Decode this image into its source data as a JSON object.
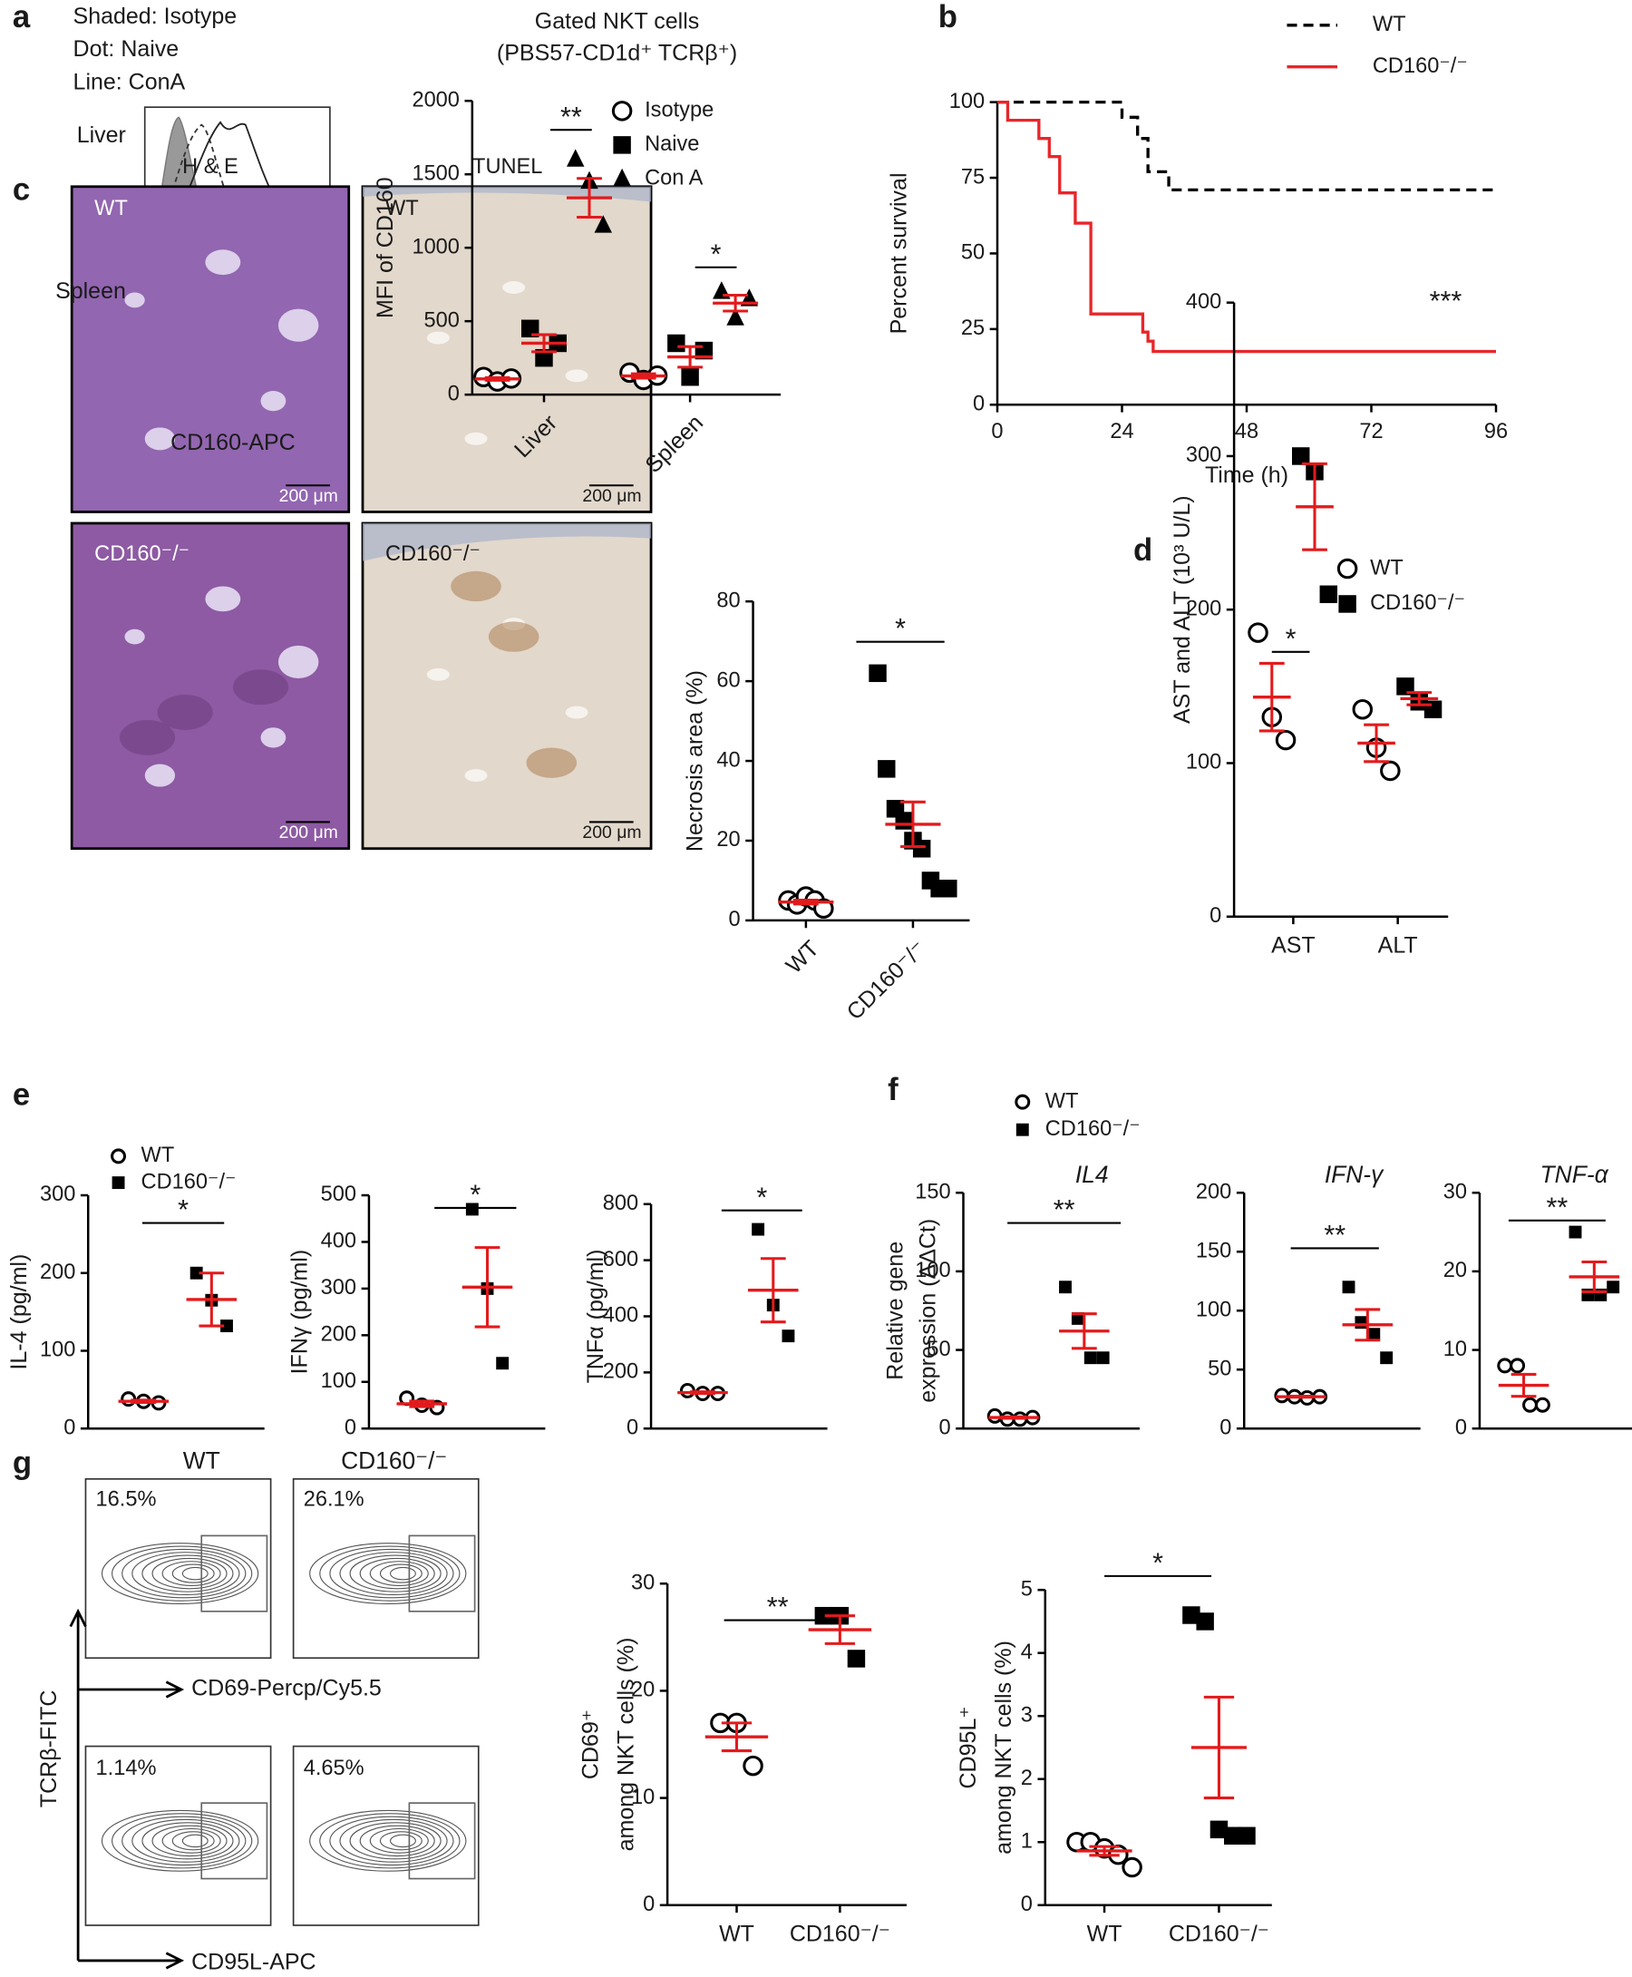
{
  "figure": {
    "panels": [
      "a",
      "b",
      "c",
      "d",
      "e",
      "f",
      "g"
    ],
    "a_legend": [
      "Shaded: Isotype",
      "Dot: Naive",
      "Line: ConA"
    ],
    "a_tissues": [
      "Liver",
      "Spleen"
    ],
    "a_xlabel": "CD160-APC",
    "c_headers": [
      "H & E",
      "TUNEL"
    ],
    "c_genotypes": [
      "WT",
      "CD160⁻/⁻"
    ],
    "scale_bar": "200 μm",
    "g_titles": [
      "WT",
      "CD160⁻/⁻"
    ],
    "g_percents": [
      "16.5%",
      "26.1%",
      "1.14%",
      "4.65%"
    ],
    "g_ylabel": "TCRβ-FITC",
    "g_xlabels": [
      "CD69-Percp/Cy5.5",
      "CD95L-APC"
    ]
  },
  "chart_data": [
    {
      "type": "dot",
      "title": [
        "Gated NKT cells",
        "(PBS57-CD1d⁺ TCRβ⁺)"
      ],
      "ylabel": [
        "MFI of CD160"
      ],
      "categories": [
        "Liver",
        "Spleen"
      ],
      "ylim": [
        0,
        2000
      ],
      "yticks": [
        0,
        500,
        1000,
        1500,
        2000
      ],
      "mean_color": "#e31a1c",
      "series": [
        {
          "name": "Isotype",
          "marker": "circle",
          "values": [
            [
              120,
              90,
              110
            ],
            [
              150,
              100,
              130
            ]
          ],
          "means": [
            107,
            127
          ],
          "errors": [
            9,
            15
          ]
        },
        {
          "name": "Naive",
          "marker": "square",
          "values": [
            [
              450,
              250,
              350
            ],
            [
              350,
              120,
              300
            ]
          ],
          "means": [
            350,
            257
          ],
          "errors": [
            58,
            70
          ]
        },
        {
          "name": "Con A",
          "marker": "triangle",
          "values": [
            [
              1600,
              1450,
              1150
            ],
            [
              700,
              520,
              650
            ]
          ],
          "means": [
            1340,
            623
          ],
          "errors": [
            132,
            54
          ]
        }
      ],
      "annotations": [
        "**",
        "*"
      ]
    },
    {
      "type": "line",
      "ylabel": "Percent survival",
      "xlabel": "Time (h)",
      "xlim": [
        0,
        96
      ],
      "xticks": [
        0,
        24,
        48,
        72,
        96
      ],
      "ylim": [
        0,
        100
      ],
      "yticks": [
        0,
        25,
        50,
        75,
        100
      ],
      "series": [
        {
          "name": "WT",
          "color": "#000000",
          "dashed": true,
          "x": [
            0,
            24,
            24,
            27,
            27,
            29,
            29,
            33,
            33,
            96
          ],
          "values": [
            100,
            100,
            95,
            95,
            88,
            88,
            77,
            77,
            71,
            71
          ]
        },
        {
          "name": "CD160⁻/⁻",
          "color": "#e8262a",
          "dashed": false,
          "x": [
            0,
            2,
            2,
            8,
            8,
            10,
            10,
            12,
            12,
            15,
            15,
            18,
            18,
            28,
            28,
            29,
            29,
            30,
            30,
            96
          ],
          "values": [
            100,
            100,
            94,
            94,
            88,
            88,
            82,
            82,
            70,
            70,
            60,
            60,
            30,
            30,
            24,
            24,
            21,
            21,
            17.6,
            17.6
          ]
        }
      ],
      "annotations": [
        "***"
      ]
    },
    {
      "type": "dot",
      "ylabel": [
        "Necrosis area (%)"
      ],
      "categories": [
        "WT",
        "CD160⁻/⁻"
      ],
      "ylim": [
        0,
        80
      ],
      "yticks": [
        0,
        20,
        40,
        60,
        80
      ],
      "mean_color": "#e31a1c",
      "series": [
        {
          "marker": "circle",
          "values": [
            [
              5,
              4,
              6,
              5,
              3
            ],
            null
          ],
          "means": [
            4.6,
            null
          ],
          "errors": [
            0.5,
            null
          ]
        },
        {
          "marker": "square",
          "values": [
            null,
            [
              62,
              38,
              28,
              25,
              20,
              18,
              10,
              8,
              8
            ]
          ],
          "means": [
            null,
            24.1
          ],
          "errors": [
            null,
            5.6
          ]
        }
      ],
      "annotations": [
        "*"
      ]
    },
    {
      "type": "dot",
      "ylabel": [
        "AST and ALT (10³ U/L)"
      ],
      "categories": [
        "AST",
        "ALT"
      ],
      "ylim": [
        0,
        400
      ],
      "yticks": [
        0,
        100,
        200,
        300,
        400
      ],
      "mean_color": "#e31a1c",
      "series": [
        {
          "name": "WT",
          "marker": "circle",
          "values": [
            [
              185,
              130,
              115
            ],
            [
              135,
              110,
              95
            ]
          ],
          "means": [
            143,
            113
          ],
          "errors": [
            22,
            12
          ]
        },
        {
          "name": "CD160⁻/⁻",
          "marker": "square",
          "values": [
            [
              300,
              290,
              210
            ],
            [
              150,
              140,
              135
            ]
          ],
          "means": [
            267,
            142
          ],
          "errors": [
            28,
            4
          ]
        }
      ],
      "annotations": [
        "*"
      ]
    },
    {
      "type": "dot",
      "ylabel": [
        "IL-4 (pg/ml)"
      ],
      "ylim": [
        0,
        300
      ],
      "yticks": [
        0,
        100,
        200,
        300
      ],
      "mean_color": "#e31a1c",
      "series": [
        {
          "name": "WT",
          "marker": "circle",
          "values": [
            [
              38,
              35,
              33
            ]
          ],
          "means": [
            35
          ],
          "errors": [
            1.5
          ]
        },
        {
          "name": "CD160⁻/⁻",
          "marker": "square",
          "values": [
            [
              200,
              165,
              132
            ]
          ],
          "means": [
            166
          ],
          "errors": [
            34
          ]
        }
      ],
      "annotations": [
        "*"
      ]
    },
    {
      "type": "dot",
      "ylabel": [
        "IFNγ (pg/ml)"
      ],
      "ylim": [
        0,
        500
      ],
      "yticks": [
        0,
        100,
        200,
        300,
        400,
        500
      ],
      "mean_color": "#e31a1c",
      "series": [
        {
          "marker": "circle",
          "values": [
            [
              65,
              50,
              45
            ]
          ],
          "means": [
            53
          ],
          "errors": [
            6
          ]
        },
        {
          "marker": "square",
          "values": [
            [
              470,
              300,
              140
            ]
          ],
          "means": [
            303
          ],
          "errors": [
            85
          ]
        }
      ],
      "annotations": [
        "*"
      ]
    },
    {
      "type": "dot",
      "ylabel": [
        "TNFα (pg/ml)"
      ],
      "ylim": [
        0,
        800
      ],
      "yticks": [
        0,
        200,
        400,
        600,
        800
      ],
      "mean_color": "#e31a1c",
      "series": [
        {
          "marker": "circle",
          "values": [
            [
              135,
              125,
              125
            ]
          ],
          "means": [
            128
          ],
          "errors": [
            3
          ]
        },
        {
          "marker": "square",
          "values": [
            [
              710,
              440,
              330
            ]
          ],
          "means": [
            493
          ],
          "errors": [
            113
          ]
        }
      ],
      "annotations": [
        "*"
      ]
    },
    {
      "type": "dot",
      "title": [
        "IL4"
      ],
      "ylabel": [
        "Relative gene",
        "expression (ΔΔCt)"
      ],
      "ylim": [
        0,
        150
      ],
      "yticks": [
        0,
        50,
        100,
        150
      ],
      "mean_color": "#e31a1c",
      "series": [
        {
          "name": "WT",
          "marker": "circle",
          "values": [
            [
              8,
              6,
              6,
              7
            ]
          ],
          "means": [
            7
          ],
          "errors": [
            0.5
          ]
        },
        {
          "name": "CD160⁻/⁻",
          "marker": "square",
          "values": [
            [
              90,
              70,
              45,
              45
            ]
          ],
          "means": [
            62
          ],
          "errors": [
            11
          ]
        }
      ],
      "annotations": [
        "**"
      ]
    },
    {
      "type": "dot",
      "title": [
        "IFN-γ"
      ],
      "ylim": [
        0,
        200
      ],
      "yticks": [
        0,
        50,
        100,
        150,
        200
      ],
      "mean_color": "#e31a1c",
      "series": [
        {
          "marker": "circle",
          "values": [
            [
              28,
              27,
              26,
              27
            ]
          ],
          "means": [
            27
          ],
          "errors": [
            0.5
          ]
        },
        {
          "marker": "square",
          "values": [
            [
              120,
              90,
              80,
              60
            ]
          ],
          "means": [
            88
          ],
          "errors": [
            13
          ]
        }
      ],
      "annotations": [
        "**"
      ]
    },
    {
      "type": "dot",
      "title": [
        "TNF-α"
      ],
      "ylim": [
        0,
        30
      ],
      "yticks": [
        0,
        10,
        20,
        30
      ],
      "mean_color": "#e31a1c",
      "series": [
        {
          "marker": "circle",
          "values": [
            [
              8,
              8,
              3,
              3
            ]
          ],
          "means": [
            5.5
          ],
          "errors": [
            1.4
          ]
        },
        {
          "marker": "square",
          "values": [
            [
              25,
              17,
              17,
              18
            ]
          ],
          "means": [
            19.3
          ],
          "errors": [
            1.9
          ]
        }
      ],
      "annotations": [
        "**"
      ]
    },
    {
      "type": "dot",
      "ylabel": [
        "CD69⁺",
        "among NKT cells (%)"
      ],
      "categories": [
        "WT",
        "CD160⁻/⁻"
      ],
      "ylim": [
        0,
        30
      ],
      "yticks": [
        0,
        10,
        20,
        30
      ],
      "mean_color": "#e31a1c",
      "series": [
        {
          "marker": "circle",
          "values": [
            [
              17,
              17,
              13
            ],
            null
          ],
          "means": [
            15.7,
            null
          ],
          "errors": [
            1.3,
            null
          ]
        },
        {
          "marker": "square",
          "values": [
            null,
            [
              27,
              27,
              23
            ]
          ],
          "means": [
            null,
            25.7
          ],
          "errors": [
            null,
            1.3
          ]
        }
      ],
      "annotations": [
        "**"
      ]
    },
    {
      "type": "dot",
      "ylabel": [
        "CD95L⁺",
        "among NKT cells (%)"
      ],
      "categories": [
        "WT",
        "CD160⁻/⁻"
      ],
      "ylim": [
        0,
        5
      ],
      "yticks": [
        0,
        1,
        2,
        3,
        4,
        5
      ],
      "mean_color": "#e31a1c",
      "series": [
        {
          "marker": "circle",
          "values": [
            [
              1.0,
              1.0,
              0.9,
              0.8,
              0.6
            ],
            null
          ],
          "means": [
            0.86,
            null
          ],
          "errors": [
            0.07,
            null
          ]
        },
        {
          "marker": "square",
          "values": [
            null,
            [
              4.6,
              4.5,
              1.2,
              1.1,
              1.1
            ]
          ],
          "means": [
            null,
            2.5
          ],
          "errors": [
            null,
            0.8
          ]
        }
      ],
      "annotations": [
        "*"
      ]
    }
  ]
}
